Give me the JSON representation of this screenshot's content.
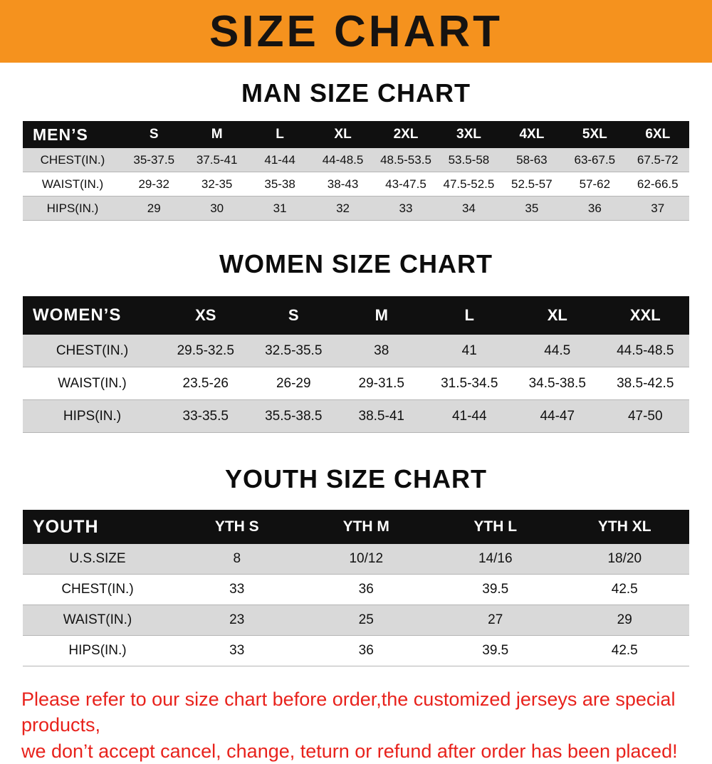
{
  "banner": {
    "title": "SIZE CHART"
  },
  "colors": {
    "banner_bg": "#F5921E",
    "header_bg": "#101010",
    "row_alt": "#D9D9D9",
    "footer_red": "#E8221C"
  },
  "sections": [
    {
      "heading": "MAN SIZE CHART",
      "table": {
        "header": [
          "MEN’S",
          "S",
          "M",
          "L",
          "XL",
          "2XL",
          "3XL",
          "4XL",
          "5XL",
          "6XL"
        ],
        "rows": [
          [
            "CHEST(IN.)",
            "35-37.5",
            "37.5-41",
            "41-44",
            "44-48.5",
            "48.5-53.5",
            "53.5-58",
            "58-63",
            "63-67.5",
            "67.5-72"
          ],
          [
            "WAIST(IN.)",
            "29-32",
            "32-35",
            "35-38",
            "38-43",
            "43-47.5",
            "47.5-52.5",
            "52.5-57",
            "57-62",
            "62-66.5"
          ],
          [
            "HIPS(IN.)",
            "29",
            "30",
            "31",
            "32",
            "33",
            "34",
            "35",
            "36",
            "37"
          ]
        ]
      }
    },
    {
      "heading": "WOMEN SIZE CHART",
      "table": {
        "header": [
          "WOMEN’S",
          "XS",
          "S",
          "M",
          "L",
          "XL",
          "XXL"
        ],
        "rows": [
          [
            "CHEST(IN.)",
            "29.5-32.5",
            "32.5-35.5",
            "38",
            "41",
            "44.5",
            "44.5-48.5"
          ],
          [
            "WAIST(IN.)",
            "23.5-26",
            "26-29",
            "29-31.5",
            "31.5-34.5",
            "34.5-38.5",
            "38.5-42.5"
          ],
          [
            "HIPS(IN.)",
            "33-35.5",
            "35.5-38.5",
            "38.5-41",
            "41-44",
            "44-47",
            "47-50"
          ]
        ]
      }
    },
    {
      "heading": "YOUTH SIZE CHART",
      "table": {
        "header": [
          "YOUTH",
          "YTH S",
          "YTH M",
          "YTH L",
          "YTH XL"
        ],
        "rows": [
          [
            "U.S.SIZE",
            "8",
            "10/12",
            "14/16",
            "18/20"
          ],
          [
            "CHEST(IN.)",
            "33",
            "36",
            "39.5",
            "42.5"
          ],
          [
            "WAIST(IN.)",
            "23",
            "25",
            "27",
            "29"
          ],
          [
            "HIPS(IN.)",
            "33",
            "36",
            "39.5",
            "42.5"
          ]
        ]
      }
    }
  ],
  "footer": {
    "line1": "Please refer to our size chart before order,the customized jerseys are special products,",
    "line2": "we don’t accept cancel, change, teturn or refund after order has been placed!"
  }
}
